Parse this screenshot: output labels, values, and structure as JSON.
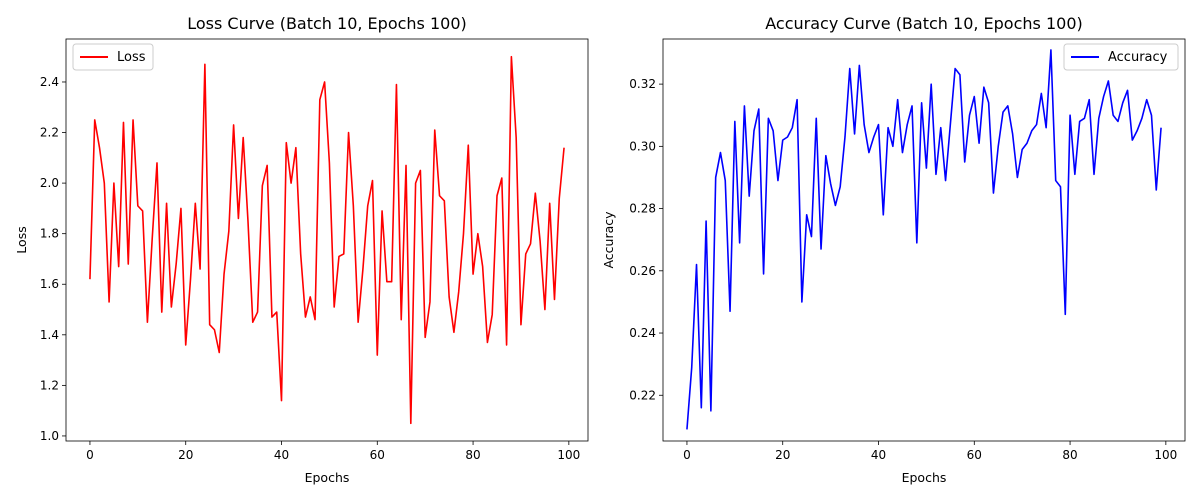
{
  "chart_data": [
    {
      "type": "line",
      "title": "Loss Curve (Batch 10, Epochs 100)",
      "xlabel": "Epochs",
      "ylabel": "Loss",
      "xlim": [
        -5,
        104
      ],
      "ylim": [
        0.98,
        2.57
      ],
      "xticks": [
        0,
        20,
        40,
        60,
        80,
        100
      ],
      "yticks": [
        1.0,
        1.2,
        1.4,
        1.6,
        1.8,
        2.0,
        2.2,
        2.4
      ],
      "ytick_decimals": 1,
      "legend_position": "upper-left",
      "grid": false,
      "series": [
        {
          "name": "Loss",
          "color": "#ff0000",
          "x": [
            0,
            1,
            2,
            3,
            4,
            5,
            6,
            7,
            8,
            9,
            10,
            11,
            12,
            13,
            14,
            15,
            16,
            17,
            18,
            19,
            20,
            21,
            22,
            23,
            24,
            25,
            26,
            27,
            28,
            29,
            30,
            31,
            32,
            33,
            34,
            35,
            36,
            37,
            38,
            39,
            40,
            41,
            42,
            43,
            44,
            45,
            46,
            47,
            48,
            49,
            50,
            51,
            52,
            53,
            54,
            55,
            56,
            57,
            58,
            59,
            60,
            61,
            62,
            63,
            64,
            65,
            66,
            67,
            68,
            69,
            70,
            71,
            72,
            73,
            74,
            75,
            76,
            77,
            78,
            79,
            80,
            81,
            82,
            83,
            84,
            85,
            86,
            87,
            88,
            89,
            90,
            91,
            92,
            93,
            94,
            95,
            96,
            97,
            98,
            99
          ],
          "values": [
            1.62,
            2.25,
            2.14,
            2.0,
            1.53,
            2.0,
            1.67,
            2.24,
            1.68,
            2.25,
            1.91,
            1.89,
            1.45,
            1.78,
            2.08,
            1.49,
            1.92,
            1.51,
            1.68,
            1.9,
            1.36,
            1.62,
            1.92,
            1.66,
            2.47,
            1.44,
            1.42,
            1.33,
            1.64,
            1.81,
            2.23,
            1.86,
            2.18,
            1.85,
            1.45,
            1.49,
            1.99,
            2.07,
            1.47,
            1.49,
            1.14,
            2.16,
            2.0,
            2.14,
            1.72,
            1.47,
            1.55,
            1.46,
            2.33,
            2.4,
            2.08,
            1.51,
            1.71,
            1.72,
            2.2,
            1.91,
            1.45,
            1.66,
            1.91,
            2.01,
            1.32,
            1.89,
            1.61,
            1.61,
            2.39,
            1.46,
            2.07,
            1.05,
            2.0,
            2.05,
            1.39,
            1.53,
            2.21,
            1.95,
            1.93,
            1.55,
            1.41,
            1.57,
            1.8,
            2.15,
            1.64,
            1.8,
            1.67,
            1.37,
            1.48,
            1.95,
            2.02,
            1.36,
            2.5,
            2.18,
            1.44,
            1.72,
            1.76,
            1.96,
            1.77,
            1.5,
            1.92,
            1.54,
            1.94,
            2.14
          ]
        }
      ]
    },
    {
      "type": "line",
      "title": "Accuracy Curve (Batch 10, Epochs 100)",
      "xlabel": "Epochs",
      "ylabel": "Accuracy",
      "xlim": [
        -5,
        104
      ],
      "ylim": [
        0.2053,
        0.3345
      ],
      "xticks": [
        0,
        20,
        40,
        60,
        80,
        100
      ],
      "yticks": [
        0.22,
        0.24,
        0.26,
        0.28,
        0.3,
        0.32
      ],
      "ytick_decimals": 2,
      "legend_position": "upper-right",
      "grid": false,
      "series": [
        {
          "name": "Accuracy",
          "color": "#0000ff",
          "x": [
            0,
            1,
            2,
            3,
            4,
            5,
            6,
            7,
            8,
            9,
            10,
            11,
            12,
            13,
            14,
            15,
            16,
            17,
            18,
            19,
            20,
            21,
            22,
            23,
            24,
            25,
            26,
            27,
            28,
            29,
            30,
            31,
            32,
            33,
            34,
            35,
            36,
            37,
            38,
            39,
            40,
            41,
            42,
            43,
            44,
            45,
            46,
            47,
            48,
            49,
            50,
            51,
            52,
            53,
            54,
            55,
            56,
            57,
            58,
            59,
            60,
            61,
            62,
            63,
            64,
            65,
            66,
            67,
            68,
            69,
            70,
            71,
            72,
            73,
            74,
            75,
            76,
            77,
            78,
            79,
            80,
            81,
            82,
            83,
            84,
            85,
            86,
            87,
            88,
            89,
            90,
            91,
            92,
            93,
            94,
            95,
            96,
            97,
            98,
            99
          ],
          "values": [
            0.209,
            0.229,
            0.262,
            0.216,
            0.276,
            0.215,
            0.29,
            0.298,
            0.289,
            0.247,
            0.308,
            0.269,
            0.313,
            0.284,
            0.305,
            0.312,
            0.259,
            0.309,
            0.305,
            0.289,
            0.302,
            0.303,
            0.306,
            0.315,
            0.25,
            0.278,
            0.271,
            0.309,
            0.267,
            0.297,
            0.288,
            0.281,
            0.287,
            0.303,
            0.325,
            0.304,
            0.326,
            0.307,
            0.298,
            0.303,
            0.307,
            0.278,
            0.306,
            0.3,
            0.315,
            0.298,
            0.307,
            0.313,
            0.269,
            0.314,
            0.293,
            0.32,
            0.291,
            0.306,
            0.289,
            0.307,
            0.325,
            0.323,
            0.295,
            0.31,
            0.316,
            0.301,
            0.319,
            0.314,
            0.285,
            0.3,
            0.311,
            0.313,
            0.304,
            0.29,
            0.299,
            0.301,
            0.305,
            0.307,
            0.317,
            0.306,
            0.331,
            0.289,
            0.287,
            0.246,
            0.31,
            0.291,
            0.308,
            0.309,
            0.315,
            0.291,
            0.309,
            0.316,
            0.321,
            0.31,
            0.308,
            0.314,
            0.318,
            0.302,
            0.305,
            0.309,
            0.315,
            0.31,
            0.286,
            0.306
          ]
        }
      ]
    }
  ]
}
